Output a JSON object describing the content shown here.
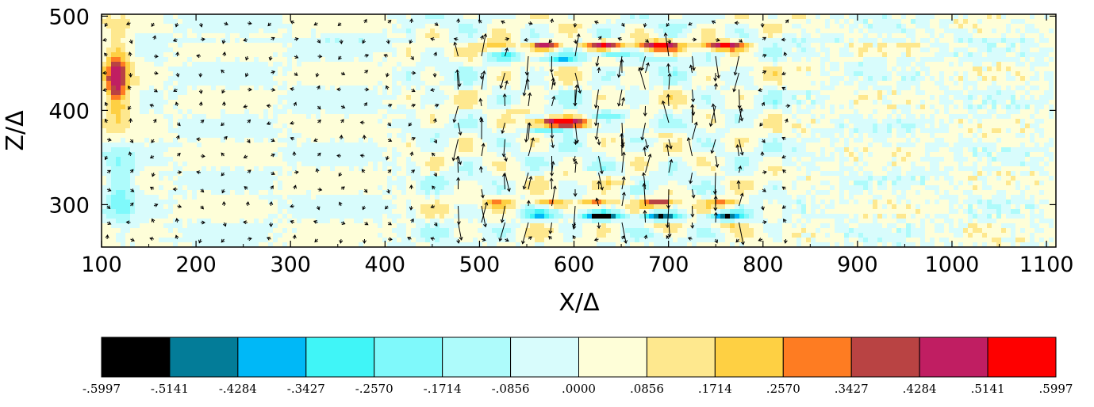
{
  "chart_data": {
    "type": "heatmap",
    "overlay": "vector-field",
    "xlabel": "X/Δ",
    "ylabel": "Z/Δ",
    "xlim": [
      100,
      1110
    ],
    "ylim": [
      255,
      502
    ],
    "xticks": [
      100,
      200,
      300,
      400,
      500,
      600,
      700,
      800,
      900,
      1000,
      1100
    ],
    "xtick_labels": [
      "100",
      "200",
      "300",
      "400",
      "500",
      "600",
      "700",
      "800",
      "900",
      "1000",
      "1100"
    ],
    "yticks": [
      300,
      400,
      500
    ],
    "ytick_labels": [
      "300",
      "400",
      "500"
    ],
    "colorbar": {
      "levels": [
        "-.5997",
        "-.5141",
        "-.4284",
        "-.3427",
        "-.2570",
        "-.1714",
        "-.0856",
        ".0000",
        ".0856",
        ".1714",
        ".2570",
        ".3427",
        ".4284",
        ".5141",
        ".5997"
      ],
      "colors": [
        "#000000",
        "#037c98",
        "#00b8f7",
        "#40f5f7",
        "#7ff9fb",
        "#aefbfb",
        "#d8fcfc",
        "#fefed8",
        "#fee88e",
        "#fed043",
        "#fe7c22",
        "#b94343",
        "#c01e62",
        "#fe0000"
      ]
    },
    "features": [
      {
        "x": 118,
        "z": 430,
        "rx": 16,
        "rz": 55,
        "value": 0.2
      },
      {
        "x": 115,
        "z": 432,
        "rx": 10,
        "rz": 32,
        "value": 0.28
      },
      {
        "x": 120,
        "z": 320,
        "rx": 14,
        "rz": 45,
        "value": -0.22
      },
      {
        "x": 520,
        "z": 470,
        "rx": 20,
        "rz": 6,
        "value": 0.26
      },
      {
        "x": 570,
        "z": 469,
        "rx": 18,
        "rz": 5,
        "value": 0.5
      },
      {
        "x": 630,
        "z": 469,
        "rx": 22,
        "rz": 5,
        "value": 0.5
      },
      {
        "x": 690,
        "z": 469,
        "rx": 20,
        "rz": 5,
        "value": 0.55
      },
      {
        "x": 760,
        "z": 469,
        "rx": 24,
        "rz": 5,
        "value": 0.55
      },
      {
        "x": 525,
        "z": 457,
        "rx": 20,
        "rz": 4,
        "value": -0.22
      },
      {
        "x": 585,
        "z": 455,
        "rx": 22,
        "rz": 4,
        "value": -0.3
      },
      {
        "x": 640,
        "z": 460,
        "rx": 18,
        "rz": 4,
        "value": -0.34
      },
      {
        "x": 700,
        "z": 455,
        "rx": 18,
        "rz": 4,
        "value": -0.25
      },
      {
        "x": 545,
        "z": 400,
        "rx": 18,
        "rz": 4,
        "value": 0.2
      },
      {
        "x": 585,
        "z": 387,
        "rx": 30,
        "rz": 5,
        "value": 0.52
      },
      {
        "x": 580,
        "z": 378,
        "rx": 28,
        "rz": 4,
        "value": -0.34
      },
      {
        "x": 640,
        "z": 395,
        "rx": 20,
        "rz": 4,
        "value": -0.2
      },
      {
        "x": 690,
        "z": 375,
        "rx": 18,
        "rz": 3,
        "value": 0.15
      },
      {
        "x": 520,
        "z": 302,
        "rx": 18,
        "rz": 5,
        "value": 0.25
      },
      {
        "x": 575,
        "z": 302,
        "rx": 18,
        "rz": 4,
        "value": 0.34
      },
      {
        "x": 625,
        "z": 302,
        "rx": 18,
        "rz": 4,
        "value": 0.36
      },
      {
        "x": 690,
        "z": 302,
        "rx": 18,
        "rz": 4,
        "value": 0.4
      },
      {
        "x": 760,
        "z": 302,
        "rx": 20,
        "rz": 4,
        "value": 0.3
      },
      {
        "x": 565,
        "z": 289,
        "rx": 20,
        "rz": 4,
        "value": -0.3
      },
      {
        "x": 630,
        "z": 288,
        "rx": 22,
        "rz": 4,
        "value": -0.55
      },
      {
        "x": 690,
        "z": 288,
        "rx": 20,
        "rz": 4,
        "value": -0.55
      },
      {
        "x": 760,
        "z": 288,
        "rx": 18,
        "rz": 4,
        "value": -0.52
      },
      {
        "x": 690,
        "z": 276,
        "rx": 20,
        "rz": 3,
        "value": 0.22
      },
      {
        "x": 760,
        "z": 276,
        "rx": 20,
        "rz": 3,
        "value": 0.18
      },
      {
        "x": 650,
        "z": 325,
        "rx": 20,
        "rz": 3,
        "value": 0.2
      },
      {
        "x": 620,
        "z": 340,
        "rx": 25,
        "rz": 3,
        "value": -0.15
      }
    ],
    "vector_regions": [
      {
        "x": [
          470,
          790
        ],
        "z": [
          275,
          470
        ],
        "magnitude": 0.9
      }
    ]
  }
}
